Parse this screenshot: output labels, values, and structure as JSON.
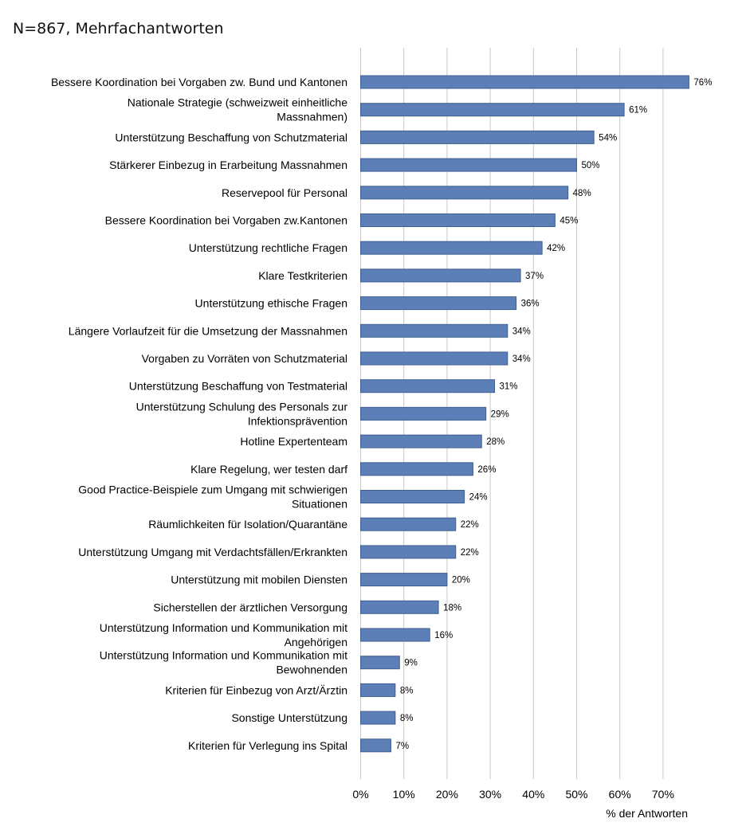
{
  "chart_data": {
    "type": "bar",
    "orientation": "horizontal",
    "title": "N=867, Mehrfachantworten",
    "xlabel": "% der Antworten",
    "ylabel": "",
    "xlim": [
      0,
      76
    ],
    "xticks": [
      "0%",
      "10%",
      "20%",
      "30%",
      "40%",
      "50%",
      "60%",
      "70%"
    ],
    "grid": true,
    "bar_color": "#5b7fb6",
    "bar_edge_color": "#3f5f91",
    "categories": [
      [
        "Bessere Koordination bei Vorgaben zw. Bund und Kantonen"
      ],
      [
        "Nationale Strategie (schweizweit einheitliche",
        "Massnahmen)"
      ],
      [
        "Unterstützung Beschaffung von Schutzmaterial"
      ],
      [
        "Stärkerer Einbezug in Erarbeitung Massnahmen"
      ],
      [
        "Reservepool für Personal"
      ],
      [
        "Bessere Koordination bei Vorgaben zw.Kantonen"
      ],
      [
        "Unterstützung rechtliche Fragen"
      ],
      [
        "Klare Testkriterien"
      ],
      [
        "Unterstützung ethische Fragen"
      ],
      [
        "Längere Vorlaufzeit für die Umsetzung der Massnahmen"
      ],
      [
        "Vorgaben zu Vorräten von Schutzmaterial"
      ],
      [
        "Unterstützung Beschaffung von Testmaterial"
      ],
      [
        "Unterstützung Schulung des Personals zur",
        "Infektionsprävention"
      ],
      [
        "Hotline Expertenteam"
      ],
      [
        "Klare Regelung, wer testen darf"
      ],
      [
        "Good Practice-Beispiele zum Umgang mit schwierigen",
        "Situationen"
      ],
      [
        "Räumlichkeiten für Isolation/Quarantäne"
      ],
      [
        "Unterstützung Umgang mit Verdachtsfällen/Erkrankten"
      ],
      [
        "Unterstützung mit mobilen Diensten"
      ],
      [
        "Sicherstellen der ärztlichen Versorgung"
      ],
      [
        "Unterstützung Information und Kommunikation mit",
        "Angehörigen"
      ],
      [
        "Unterstützung Information und Kommunikation mit",
        "Bewohnenden"
      ],
      [
        "Kriterien für Einbezug von Arzt/Ärztin"
      ],
      [
        "Sonstige Unterstützung"
      ],
      [
        "Kriterien für Verlegung ins Spital"
      ]
    ],
    "values": [
      76,
      61,
      54,
      50,
      48,
      45,
      42,
      37,
      36,
      34,
      34,
      31,
      29,
      28,
      26,
      24,
      22,
      22,
      20,
      18,
      16,
      9,
      8,
      8,
      7
    ],
    "value_labels": [
      "76%",
      "61%",
      "54%",
      "50%",
      "48%",
      "45%",
      "42%",
      "37%",
      "36%",
      "34%",
      "34%",
      "31%",
      "29%",
      "28%",
      "26%",
      "24%",
      "22%",
      "22%",
      "20%",
      "18%",
      "16%",
      "9%",
      "8%",
      "8%",
      "7%"
    ]
  }
}
